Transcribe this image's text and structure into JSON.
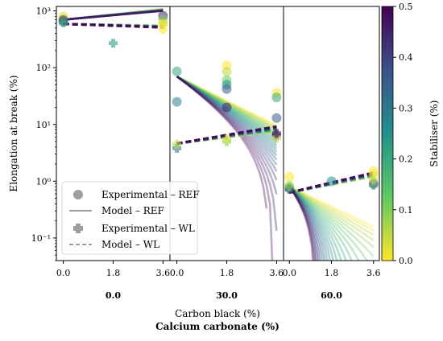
{
  "chart_data": {
    "type": "scatter",
    "ylabel": "Elongation at break (%)",
    "yscale": "log",
    "ylim": [
      0.04,
      1200
    ],
    "y_ticks": [
      "10⁻¹",
      "10⁰",
      "10¹",
      "10²",
      "10³"
    ],
    "y_tick_values": [
      0.1,
      1,
      10,
      100,
      1000
    ],
    "xlabel": "Carbon black (%)",
    "xlabel2": "Calcium carbonate (%)",
    "x_ticks": [
      "0.0",
      "1.8",
      "3.6"
    ],
    "x_tick_values": [
      0.0,
      1.8,
      3.6
    ],
    "xlim": [
      -0.25,
      3.85
    ],
    "panels": [
      {
        "label": "0.0",
        "calcium_carbonate": 0.0,
        "ref_points": [
          {
            "x": 0.0,
            "y": 800,
            "s": 0.02
          },
          {
            "x": 0.0,
            "y": 720,
            "s": 0.05
          },
          {
            "x": 0.0,
            "y": 640,
            "s": 0.3
          },
          {
            "x": 0.0,
            "y": 690,
            "s": 0.42
          },
          {
            "x": 3.6,
            "y": 820,
            "s": 0.45
          },
          {
            "x": 3.6,
            "y": 700,
            "s": 0.1
          },
          {
            "x": 3.6,
            "y": 600,
            "s": 0.02
          }
        ],
        "wl_points": [
          {
            "x": 0.0,
            "y": 620,
            "s": 0.2
          },
          {
            "x": 1.8,
            "y": 270,
            "s": 0.22
          },
          {
            "x": 3.6,
            "y": 470,
            "s": 0.0
          },
          {
            "x": 3.6,
            "y": 580,
            "s": 0.02
          }
        ],
        "ref_model": {
          "a": 700,
          "c": 0.12,
          "spread": 0.02,
          "s_dir": -1
        },
        "wl_model": {
          "a": 590,
          "c": -0.02,
          "spread": 0.02,
          "s_dir": -1
        }
      },
      {
        "label": "30.0",
        "calcium_carbonate": 30.0,
        "ref_points": [
          {
            "x": 0.0,
            "y": 86,
            "s": 0.2
          },
          {
            "x": 0.0,
            "y": 25,
            "s": 0.28
          },
          {
            "x": 1.8,
            "y": 110,
            "s": 0.0
          },
          {
            "x": 1.8,
            "y": 85,
            "s": 0.05
          },
          {
            "x": 1.8,
            "y": 60,
            "s": 0.12
          },
          {
            "x": 1.8,
            "y": 50,
            "s": 0.25
          },
          {
            "x": 1.8,
            "y": 42,
            "s": 0.35
          },
          {
            "x": 1.8,
            "y": 20,
            "s": 0.45
          },
          {
            "x": 3.6,
            "y": 36,
            "s": 0.0
          },
          {
            "x": 3.6,
            "y": 30,
            "s": 0.2
          },
          {
            "x": 3.6,
            "y": 13,
            "s": 0.35
          }
        ],
        "wl_points": [
          {
            "x": 0.0,
            "y": 3.8,
            "s": 0.3
          },
          {
            "x": 0.0,
            "y": 4.5,
            "s": 0.05
          },
          {
            "x": 1.8,
            "y": 5.0,
            "s": 0.1
          },
          {
            "x": 1.8,
            "y": 5.5,
            "s": 0.02
          },
          {
            "x": 3.6,
            "y": 6.5,
            "s": 0.45
          },
          {
            "x": 3.6,
            "y": 5.8,
            "s": 0.05
          },
          {
            "x": 3.6,
            "y": 7.0,
            "s": 0.48
          }
        ],
        "ref_model": {
          "a": 70,
          "c": -0.55,
          "spread": 0.3,
          "s_dir": -1
        },
        "wl_model": {
          "a": 4.6,
          "c": 0.14,
          "spread": 0.06,
          "s_dir": 1
        }
      },
      {
        "label": "60.0",
        "calcium_carbonate": 60.0,
        "ref_points": [
          {
            "x": 0.0,
            "y": 1.2,
            "s": 0.0
          },
          {
            "x": 0.0,
            "y": 0.85,
            "s": 0.05
          },
          {
            "x": 0.0,
            "y": 0.75,
            "s": 0.25
          },
          {
            "x": 1.8,
            "y": 1.0,
            "s": 0.25
          },
          {
            "x": 3.6,
            "y": 1.5,
            "s": 0.0
          },
          {
            "x": 3.6,
            "y": 1.3,
            "s": 0.02
          },
          {
            "x": 3.6,
            "y": 0.9,
            "s": 0.45
          }
        ],
        "wl_points": [
          {
            "x": 0.0,
            "y": 0.72,
            "s": 0.4
          },
          {
            "x": 0.0,
            "y": 0.8,
            "s": 0.1
          },
          {
            "x": 3.6,
            "y": 0.85,
            "s": 0.2
          },
          {
            "x": 3.6,
            "y": 1.05,
            "s": 0.05
          }
        ],
        "ref_model": {
          "a": 0.8,
          "c": -0.45,
          "spread": 0.9,
          "s_dir": -1
        },
        "wl_model": {
          "a": 0.63,
          "c": 0.18,
          "spread": 0.05,
          "s_dir": 1
        }
      }
    ],
    "legend": {
      "position": "lower-left",
      "entries": [
        "Experimental – REF",
        "Model – REF",
        "Experimental – WL",
        "Model – WL"
      ]
    },
    "colorbar": {
      "label": "Stabiliser (%)",
      "colormap": "viridis",
      "range": [
        0.0,
        0.5
      ],
      "ticks": [
        "0.0",
        "0.1",
        "0.2",
        "0.3",
        "0.4",
        "0.5"
      ],
      "tick_values": [
        0.0,
        0.1,
        0.2,
        0.3,
        0.4,
        0.5
      ]
    }
  }
}
